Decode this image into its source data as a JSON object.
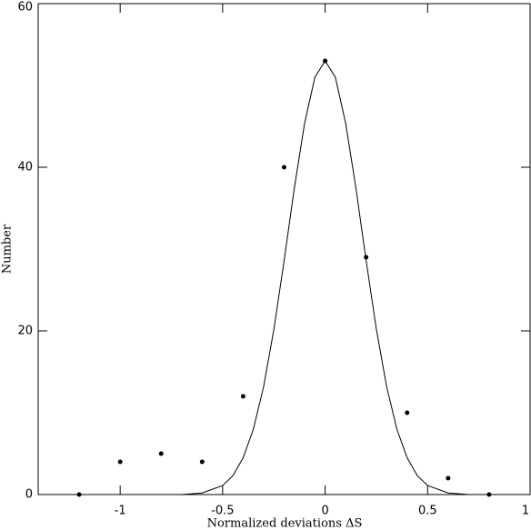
{
  "chart_data": {
    "type": "scatter",
    "x_label": "Normalized deviations ΔS",
    "y_label": "Number",
    "xlim": [
      -1.4,
      1
    ],
    "ylim": [
      0,
      60
    ],
    "xticks": [
      -1,
      -0.5,
      0,
      0.5,
      1
    ],
    "yticks": [
      0,
      20,
      40,
      60
    ],
    "series": [
      {
        "type": "scatter",
        "color": "#000000",
        "x": [
          -1.2,
          -1,
          -0.8,
          -0.6,
          -0.4,
          -0.2,
          0,
          0.2,
          0.4,
          0.6,
          0.8
        ],
        "values": [
          0,
          4,
          5,
          4,
          12,
          40,
          53,
          29,
          10,
          2,
          0
        ]
      },
      {
        "type": "line",
        "color": "#000000",
        "x": [
          -0.8,
          -0.7,
          -0.6,
          -0.5,
          -0.45,
          -0.4,
          -0.35,
          -0.3,
          -0.25,
          -0.2,
          -0.15,
          -0.1,
          -0.05,
          0,
          0.05,
          0.1,
          0.15,
          0.2,
          0.25,
          0.3,
          0.35,
          0.4,
          0.45,
          0.5,
          0.6,
          0.7,
          0.8
        ],
        "values": [
          0,
          0,
          0.2,
          1.1,
          2.3,
          4.5,
          8.0,
          13.2,
          20.2,
          28.6,
          37.5,
          45.4,
          51.0,
          53,
          51.0,
          45.4,
          37.5,
          28.6,
          20.2,
          13.2,
          8.0,
          4.5,
          2.3,
          1.1,
          0.2,
          0,
          0
        ]
      }
    ]
  }
}
